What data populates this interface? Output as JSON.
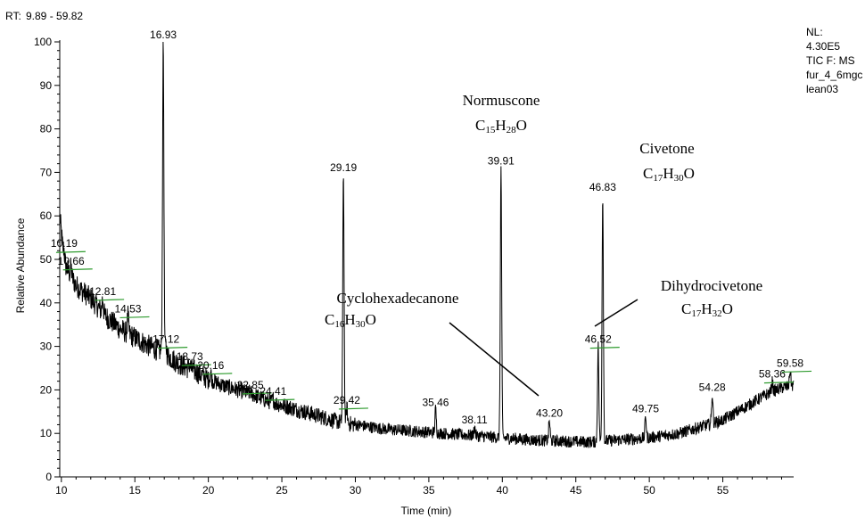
{
  "header": {
    "rt_label": "RT:",
    "rt_range": "9.89 - 59.82",
    "rt_color": "#1f2d9e",
    "info_lines": [
      "NL:",
      "4.30E5",
      "TIC F:  MS",
      "fur_4_6mgc",
      "lean03"
    ]
  },
  "chart_data": {
    "type": "line",
    "xlabel": "Time (min)",
    "ylabel": "Relative Abundance",
    "xlim": [
      9.89,
      59.82
    ],
    "ylim": [
      0,
      100
    ],
    "x_ticks": [
      10,
      15,
      20,
      25,
      30,
      35,
      40,
      45,
      50,
      55
    ],
    "y_ticks": [
      0,
      10,
      20,
      30,
      40,
      50,
      60,
      70,
      80,
      90,
      100
    ],
    "grid": false,
    "line_color": "#000000",
    "integration_mark_color": "#2e9b2e",
    "baseline_profile": [
      [
        9.89,
        60
      ],
      [
        10.2,
        49
      ],
      [
        11,
        44
      ],
      [
        12,
        41
      ],
      [
        13,
        37
      ],
      [
        14,
        34
      ],
      [
        15,
        32
      ],
      [
        16,
        30
      ],
      [
        17,
        28.5
      ],
      [
        18,
        26
      ],
      [
        19,
        24.5
      ],
      [
        20,
        22.5
      ],
      [
        21,
        21
      ],
      [
        22,
        20
      ],
      [
        23,
        19
      ],
      [
        24,
        17.5
      ],
      [
        25,
        16.5
      ],
      [
        26,
        15.5
      ],
      [
        27,
        14.5
      ],
      [
        28,
        13.5
      ],
      [
        29,
        12.5
      ],
      [
        30,
        12
      ],
      [
        32,
        11
      ],
      [
        34,
        10.5
      ],
      [
        36,
        10
      ],
      [
        38,
        9.5
      ],
      [
        40,
        9
      ],
      [
        42,
        8.5
      ],
      [
        44,
        8.2
      ],
      [
        46,
        8
      ],
      [
        48,
        8.5
      ],
      [
        50,
        9
      ],
      [
        52,
        10
      ],
      [
        54,
        12
      ],
      [
        55,
        13
      ],
      [
        56,
        15
      ],
      [
        57,
        17
      ],
      [
        58,
        19
      ],
      [
        59,
        20.5
      ],
      [
        59.82,
        21
      ]
    ],
    "peaks": [
      {
        "rt": 10.19,
        "height": 52,
        "label": "10.19"
      },
      {
        "rt": 10.66,
        "height": 48,
        "label": "10.66"
      },
      {
        "rt": 12.81,
        "height": 41,
        "label": "12.81"
      },
      {
        "rt": 14.53,
        "height": 37,
        "label": "14.53"
      },
      {
        "rt": 16.93,
        "height": 100,
        "label": "16.93"
      },
      {
        "rt": 17.12,
        "height": 30,
        "label": "17.12"
      },
      {
        "rt": 18.73,
        "height": 26,
        "label": "18.73"
      },
      {
        "rt": 20.16,
        "height": 24,
        "label": "20.16"
      },
      {
        "rt": 22.85,
        "height": 19.5,
        "label": "22.85"
      },
      {
        "rt": 24.41,
        "height": 18,
        "label": "24.41"
      },
      {
        "rt": 29.19,
        "height": 69.5,
        "label": "29.19"
      },
      {
        "rt": 29.42,
        "height": 16,
        "label": "29.42"
      },
      {
        "rt": 35.46,
        "height": 15.5,
        "label": "35.46"
      },
      {
        "rt": 38.11,
        "height": 11.5,
        "label": "38.11"
      },
      {
        "rt": 39.91,
        "height": 71,
        "label": "39.91"
      },
      {
        "rt": 43.2,
        "height": 13,
        "label": "43.20"
      },
      {
        "rt": 46.52,
        "height": 30,
        "label": "46.52"
      },
      {
        "rt": 46.83,
        "height": 65,
        "label": "46.83"
      },
      {
        "rt": 49.75,
        "height": 14,
        "label": "49.75"
      },
      {
        "rt": 54.28,
        "height": 19,
        "label": "54.28"
      },
      {
        "rt": 58.36,
        "height": 22,
        "label": "58.36"
      },
      {
        "rt": 59.58,
        "height": 24.5,
        "label": "59.58"
      }
    ],
    "integration_marks": [
      "10.19",
      "10.66",
      "12.81",
      "14.53",
      "17.12",
      "18.73",
      "20.16",
      "22.85",
      "24.41",
      "29.42",
      "58.36",
      "59.58",
      "46.52"
    ],
    "annotations": [
      {
        "name": "Normuscone",
        "formula": [
          "C",
          "15",
          "H",
          "28",
          "O"
        ]
      },
      {
        "name": "Civetone",
        "formula": [
          "C",
          "17",
          "H",
          "30",
          "O"
        ]
      },
      {
        "name": "Cyclohexadecanone",
        "formula": [
          "C",
          "16",
          "H",
          "30",
          "O"
        ]
      },
      {
        "name": "Dihydrocivetone",
        "formula": [
          "C",
          "17",
          "H",
          "32",
          "O"
        ]
      }
    ]
  }
}
